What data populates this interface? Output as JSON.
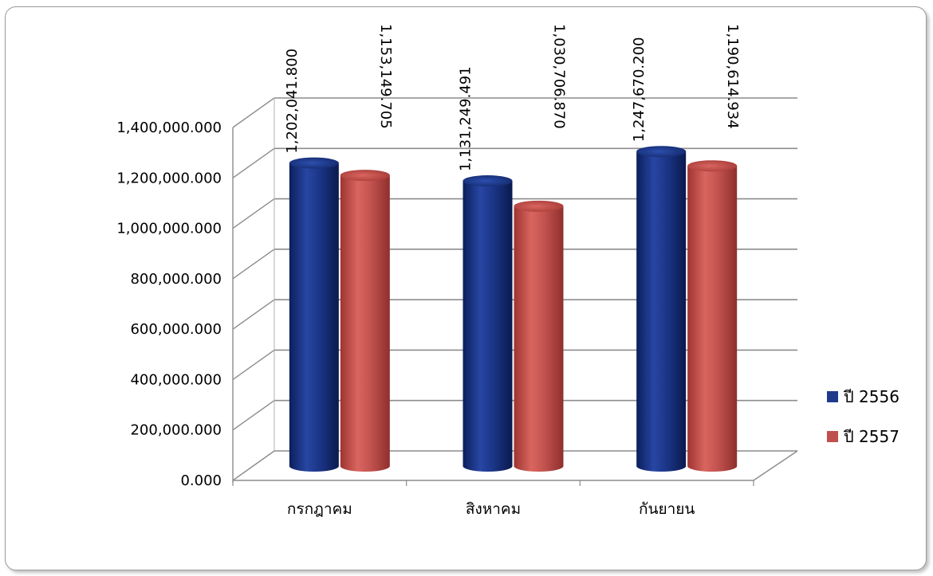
{
  "chart_data": {
    "type": "bar",
    "categories": [
      "กรกฎาคม",
      "สิงหาคม",
      "กันยายน"
    ],
    "series": [
      {
        "name": "ปี 2556",
        "values": [
          1202041.8,
          1131249.491,
          1247670.2
        ],
        "labels": [
          "1,202,041.800",
          "1,131,249.491",
          "1,247,670.200"
        ],
        "color": "#1f3a8a"
      },
      {
        "name": "ปี 2557",
        "values": [
          1153149.705,
          1030706.87,
          1190614.934
        ],
        "labels": [
          "1,153,149.705",
          "1,030,706.870",
          "1,190,614.934"
        ],
        "color": "#c0504d"
      }
    ],
    "ylim": [
      0,
      1400000
    ],
    "yticks": [
      0,
      200000,
      400000,
      600000,
      800000,
      1000000,
      1200000,
      1400000
    ],
    "ytick_labels": [
      "0.000",
      "200,000.000",
      "400,000.000",
      "600,000.000",
      "800,000.000",
      "1,000,000.000",
      "1,200,000.000",
      "1,400,000.000"
    ],
    "title": "",
    "xlabel": "",
    "ylabel": "",
    "grid": true,
    "legend_position": "right",
    "style": "3d-cylinder"
  }
}
